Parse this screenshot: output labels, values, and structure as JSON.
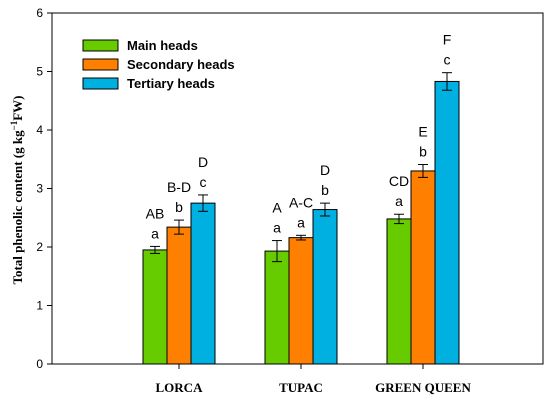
{
  "chart_data": {
    "type": "bar",
    "ylabel_main": "Total phenolic content (g kg",
    "ylabel_sup": "−1",
    "ylabel_end": "FW)",
    "xlabel": "",
    "ylim": [
      0,
      6
    ],
    "yticks": [
      "0",
      "1",
      "2",
      "3",
      "4",
      "5",
      "6"
    ],
    "categories": [
      "LORCA",
      "TUPAC",
      "GREEN QUEEN"
    ],
    "legend_position": "top-left",
    "series": [
      {
        "name": "Main heads",
        "color": "#66cc00",
        "values": [
          1.95,
          1.93,
          2.48
        ],
        "errors": [
          0.06,
          0.18,
          0.08
        ],
        "letters": [
          "a",
          "a",
          "a"
        ]
      },
      {
        "name": "Secondary heads",
        "color": "#ff8000",
        "values": [
          2.34,
          2.16,
          3.3
        ],
        "errors": [
          0.12,
          0.04,
          0.11
        ],
        "letters": [
          "b",
          "a",
          "b"
        ]
      },
      {
        "name": "Tertiary heads",
        "color": "#00b0e0",
        "values": [
          2.75,
          2.64,
          4.83
        ],
        "errors": [
          0.14,
          0.11,
          0.15
        ],
        "letters": [
          "c",
          "b",
          "c"
        ]
      }
    ],
    "upper_letters": [
      [
        "AB",
        "B-D",
        "D"
      ],
      [
        "A",
        "A-C",
        "D"
      ],
      [
        "CD",
        "E",
        "F"
      ]
    ]
  }
}
